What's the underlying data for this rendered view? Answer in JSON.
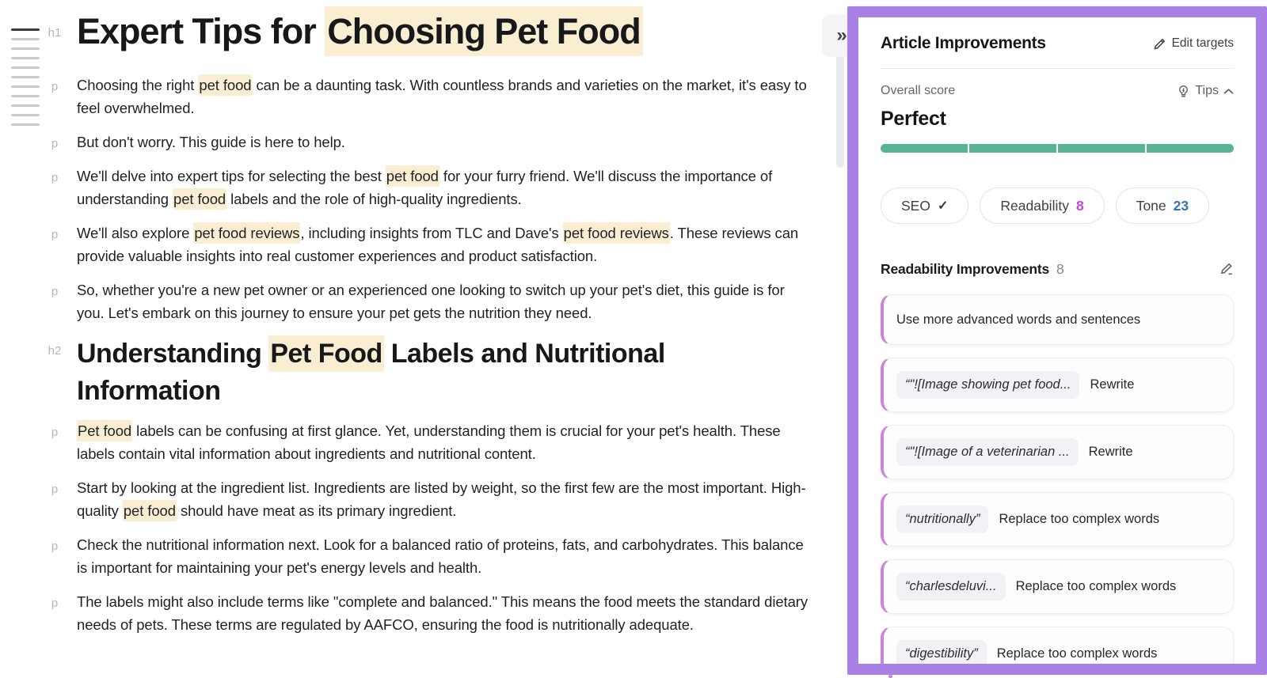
{
  "editor": {
    "highlight_color": "#faeed2",
    "blocks": [
      {
        "tag": "h1",
        "type": "h1",
        "segments": [
          {
            "t": "Expert Tips for ",
            "h": false
          },
          {
            "t": "Choosing Pet Food",
            "h": true
          }
        ]
      },
      {
        "tag": "p",
        "type": "p",
        "segments": [
          {
            "t": "Choosing the right ",
            "h": false
          },
          {
            "t": "pet food",
            "h": true
          },
          {
            "t": " can be a daunting task. With countless brands and varieties on the market, it's easy to feel overwhelmed.",
            "h": false
          }
        ]
      },
      {
        "tag": "p",
        "type": "p",
        "segments": [
          {
            "t": "But don't worry. This guide is here to help.",
            "h": false
          }
        ]
      },
      {
        "tag": "p",
        "type": "p",
        "segments": [
          {
            "t": "We'll delve into expert tips for selecting the best ",
            "h": false
          },
          {
            "t": "pet food",
            "h": true
          },
          {
            "t": " for your furry friend. We'll discuss the importance of understanding ",
            "h": false
          },
          {
            "t": "pet food",
            "h": true
          },
          {
            "t": " labels and the role of high-quality ingredients.",
            "h": false
          }
        ]
      },
      {
        "tag": "p",
        "type": "p",
        "segments": [
          {
            "t": "We'll also explore ",
            "h": false
          },
          {
            "t": "pet food reviews",
            "h": true
          },
          {
            "t": ", including insights from TLC and Dave's ",
            "h": false
          },
          {
            "t": "pet food reviews",
            "h": true
          },
          {
            "t": ". These reviews can provide valuable insights into real customer experiences and product satisfaction.",
            "h": false
          }
        ]
      },
      {
        "tag": "p",
        "type": "p",
        "segments": [
          {
            "t": "So, whether you're a new pet owner or an experienced one looking to switch up your pet's diet, this guide is for you. Let's embark on this journey to ensure your pet gets the nutrition they need.",
            "h": false
          }
        ]
      },
      {
        "tag": "h2",
        "type": "h2",
        "segments": [
          {
            "t": "Understanding ",
            "h": false
          },
          {
            "t": "Pet Food",
            "h": true
          },
          {
            "t": " Labels and Nutritional Information",
            "h": false
          }
        ]
      },
      {
        "tag": "p",
        "type": "p",
        "segments": [
          {
            "t": "Pet food",
            "h": true
          },
          {
            "t": " labels can be confusing at first glance. Yet, understanding them is crucial for your pet's health. These labels contain vital information about ingredients and nutritional content.",
            "h": false
          }
        ]
      },
      {
        "tag": "p",
        "type": "p",
        "segments": [
          {
            "t": "Start by looking at the ingredient list. Ingredients are listed by weight, so the first few are the most important. High-quality ",
            "h": false
          },
          {
            "t": "pet food",
            "h": true
          },
          {
            "t": " should have meat as its primary ingredient.",
            "h": false
          }
        ]
      },
      {
        "tag": "p",
        "type": "p",
        "segments": [
          {
            "t": "Check the nutritional information next. Look for a balanced ratio of proteins, fats, and carbohydrates. This balance is important for maintaining your pet's energy levels and health.",
            "h": false
          }
        ]
      },
      {
        "tag": "p",
        "type": "p",
        "segments": [
          {
            "t": "The labels might also include terms like \"complete and balanced.\" This means the food meets the standard dietary needs of pets. These terms are regulated by AAFCO, ensuring the food is nutritionally adequate.",
            "h": false
          }
        ]
      }
    ]
  },
  "panel": {
    "title": "Article Improvements",
    "edit_targets_label": "Edit targets",
    "collapse_icon": "»",
    "overall_score_label": "Overall score",
    "tips_label": "Tips",
    "score_value": "Perfect",
    "score_color": "#58b492",
    "score_segments": 4,
    "frame_color": "#a980e6",
    "card_accent_color": "#cb85d8",
    "pills": [
      {
        "label": "SEO",
        "value": "",
        "check": true,
        "value_color": "#33363c"
      },
      {
        "label": "Readability",
        "value": "8",
        "check": false,
        "value_color": "#bc4bd4"
      },
      {
        "label": "Tone",
        "value": "23",
        "check": false,
        "value_color": "#3a71ad"
      }
    ],
    "section": {
      "title": "Readability Improvements",
      "count": "8"
    },
    "cards": [
      {
        "chip": "",
        "text": "Use more advanced words and sentences",
        "action": ""
      },
      {
        "chip": "“\"![Image showing pet food...",
        "text": "",
        "action": "Rewrite"
      },
      {
        "chip": "“\"![Image of a veterinarian ...",
        "text": "",
        "action": "Rewrite"
      },
      {
        "chip": "“nutritionally”",
        "text": "",
        "action": "Replace too complex words"
      },
      {
        "chip": "“charlesdeluvi...",
        "text": "",
        "action": "Replace too complex words"
      },
      {
        "chip": "“digestibility”",
        "text": "",
        "action": "Replace too complex words"
      }
    ]
  }
}
